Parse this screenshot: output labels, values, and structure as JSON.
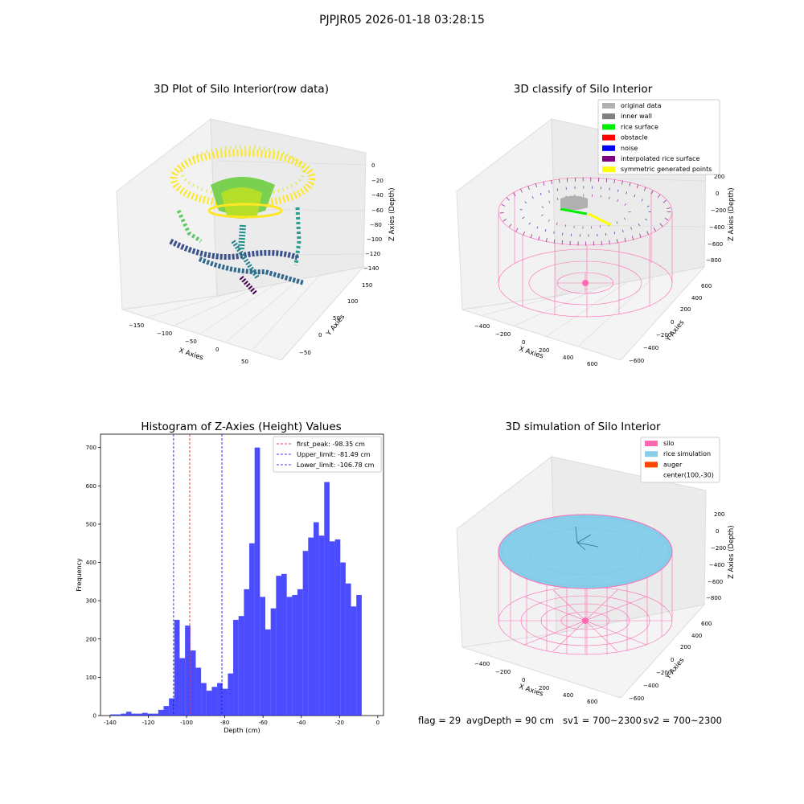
{
  "figure_title": "PJPJR05 2026-01-18 03:28:15",
  "status_bar": {
    "flag": "flag = 29",
    "avg_depth": "avgDepth = 90 cm",
    "sv1": "sv1 = 700~2300",
    "sv2": "sv2 = 700~2300"
  },
  "chart_data": [
    {
      "type": "scatter",
      "title": "3D Plot of Silo Interior(row data)",
      "xlabel": "X Axies",
      "ylabel": "Y Axies",
      "zlabel": "Z Axies (Depth)",
      "xticks": [
        "−150",
        "−100",
        "−50",
        "0",
        "50"
      ],
      "yticks": [
        "−50",
        "0",
        "50",
        "100",
        "150"
      ],
      "zticks": [
        "0",
        "−20",
        "−40",
        "−60",
        "−80",
        "−100",
        "−120",
        "−140"
      ],
      "colormap": "viridis"
    },
    {
      "type": "scatter",
      "title": "3D classify of Silo Interior",
      "xlabel": "X Axies",
      "ylabel": "Y Axies",
      "zlabel": "Z Axies (Depth)",
      "xticks": [
        "−400",
        "−200",
        "0",
        "200",
        "400",
        "600"
      ],
      "yticks": [
        "−600",
        "−400",
        "−200",
        "0",
        "200",
        "400",
        "600"
      ],
      "zticks": [
        "200",
        "0",
        "−200",
        "−400",
        "−600",
        "−800"
      ],
      "legend": [
        {
          "label": "original data",
          "color": "#b0b0b0"
        },
        {
          "label": "inner wall",
          "color": "#808080"
        },
        {
          "label": "rice surface",
          "color": "#00ee00"
        },
        {
          "label": "obstacle",
          "color": "#ff0000"
        },
        {
          "label": "noise",
          "color": "#0000ff"
        },
        {
          "label": "interpolated rice surface",
          "color": "#800080"
        },
        {
          "label": "symmetric generated points",
          "color": "#ffff00"
        }
      ]
    },
    {
      "type": "bar",
      "title": "Histogram of Z-Axies (Height) Values",
      "xlabel": "Depth (cm)",
      "ylabel": "Frequency",
      "xlim": [
        -145,
        3
      ],
      "ylim": [
        0,
        735
      ],
      "xticks": [
        -140,
        -120,
        -100,
        -80,
        -60,
        -40,
        -20,
        0
      ],
      "yticks": [
        0,
        100,
        200,
        300,
        400,
        500,
        600,
        700
      ],
      "bin_start": -140,
      "bin_width": 2.8,
      "values": [
        3,
        3,
        5,
        10,
        5,
        5,
        7,
        5,
        5,
        15,
        25,
        45,
        250,
        150,
        235,
        170,
        125,
        85,
        65,
        75,
        85,
        70,
        110,
        250,
        260,
        330,
        450,
        700,
        310,
        225,
        280,
        365,
        370,
        310,
        315,
        330,
        430,
        465,
        505,
        470,
        610,
        455,
        460,
        400,
        345,
        285,
        315
      ],
      "color": "#0000ff",
      "vlines": [
        {
          "x": -98.35,
          "label": "first_peak: -98.35 cm",
          "color": "#ff0000"
        },
        {
          "x": -81.49,
          "label": "Upper_limit: -81.49 cm",
          "color": "#0000ff"
        },
        {
          "x": -106.78,
          "label": "Lower_limit: -106.78 cm",
          "color": "#0000ff"
        }
      ],
      "legend_position": "top-right"
    },
    {
      "type": "scatter",
      "title": "3D simulation of Silo Interior",
      "xlabel": "X Axies",
      "ylabel": "Y Axies",
      "zlabel": "Z Axies (Depth)",
      "xticks": [
        "−400",
        "−200",
        "0",
        "200",
        "400",
        "600"
      ],
      "yticks": [
        "−600",
        "−400",
        "−200",
        "0",
        "200",
        "400",
        "600"
      ],
      "zticks": [
        "200",
        "0",
        "−200",
        "−400",
        "−600",
        "−800"
      ],
      "legend": [
        {
          "label": "silo",
          "color": "#ff69b4"
        },
        {
          "label": "rice simulation",
          "color": "#87ceeb"
        },
        {
          "label": "auger",
          "color": "#ff4500"
        },
        {
          "label": "center(100,-30)",
          "color": ""
        }
      ]
    }
  ]
}
